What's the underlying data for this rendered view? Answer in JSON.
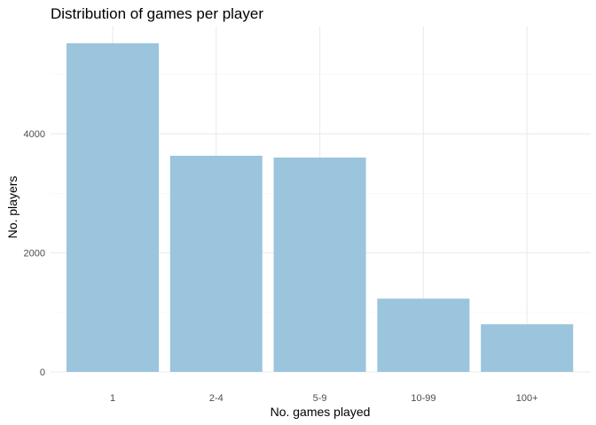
{
  "chart_data": {
    "type": "bar",
    "title": "Distribution of games per player",
    "xlabel": "No. games played",
    "ylabel": "No. players",
    "categories": [
      "1",
      "2-4",
      "5-9",
      "10-99",
      "100+"
    ],
    "values": [
      5520,
      3630,
      3600,
      1230,
      800
    ],
    "ylim": [
      0,
      5800
    ],
    "yticks": [
      0,
      2000,
      4000
    ],
    "grid": true,
    "legend": "none",
    "bar_color": "#9ac5dd"
  }
}
